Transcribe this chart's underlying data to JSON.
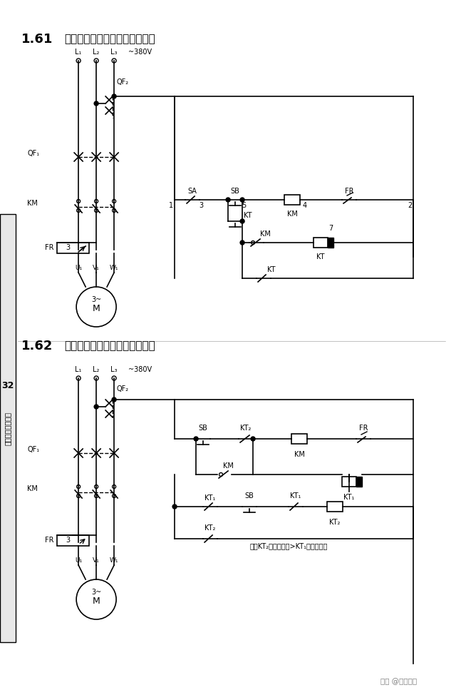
{
  "title1": "1.61  短暂停电自动再启动电路（一）",
  "title2": "1.62  短暂停电自动再启动电路（二）",
  "page_num": "32",
  "watermark": "头条 @阿飞电工",
  "bg_color": "#ffffff",
  "line_color": "#000000",
  "sidebar_color": "#d0d0d0"
}
